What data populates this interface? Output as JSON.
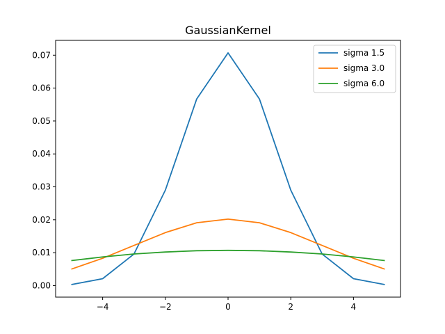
{
  "chart_data": {
    "type": "line",
    "title": "GaussianKernel",
    "xlabel": "",
    "ylabel": "",
    "xlim": [
      -5.5,
      5.5
    ],
    "ylim": [
      -0.0035,
      0.0745
    ],
    "xticks": [
      -4,
      -2,
      0,
      2,
      4
    ],
    "xtick_labels": [
      "−4",
      "−2",
      "0",
      "2",
      "4"
    ],
    "yticks": [
      0.0,
      0.01,
      0.02,
      0.03,
      0.04,
      0.05,
      0.06,
      0.07
    ],
    "ytick_labels": [
      "0.00",
      "0.01",
      "0.02",
      "0.03",
      "0.04",
      "0.05",
      "0.06",
      "0.07"
    ],
    "grid": false,
    "legend_position": "top-right",
    "x": [
      -5,
      -4,
      -3,
      -2,
      -1,
      0,
      1,
      2,
      3,
      4,
      5
    ],
    "series": [
      {
        "name": "sigma 1.5",
        "color": "#1f77b4",
        "values": [
          0.0003,
          0.0021,
          0.0096,
          0.029,
          0.0567,
          0.0707,
          0.0567,
          0.029,
          0.0096,
          0.0021,
          0.0003
        ]
      },
      {
        "name": "sigma 3.0",
        "color": "#ff7f0e",
        "values": [
          0.005,
          0.0083,
          0.0122,
          0.0161,
          0.0191,
          0.0202,
          0.0191,
          0.0161,
          0.0122,
          0.0083,
          0.005
        ]
      },
      {
        "name": "sigma 6.0",
        "color": "#2ca02c",
        "values": [
          0.0076,
          0.0087,
          0.0096,
          0.0102,
          0.0106,
          0.0107,
          0.0106,
          0.0102,
          0.0096,
          0.0087,
          0.0076
        ]
      }
    ]
  }
}
